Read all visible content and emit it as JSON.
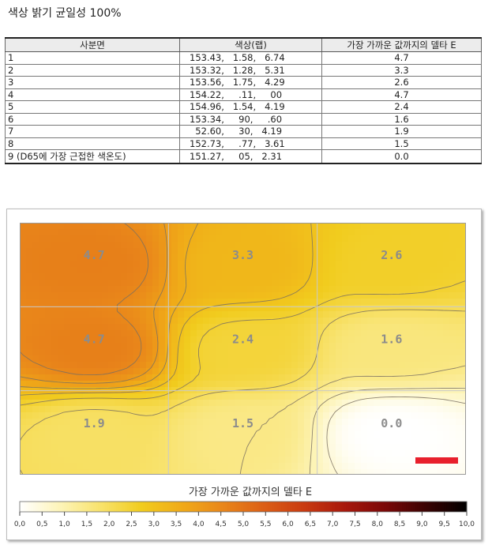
{
  "title": "색상 밝기 균일성 100%",
  "table": {
    "headers": [
      "사분면",
      "색상(랩)",
      "가장 가까운 값까지의 델타 E"
    ],
    "rows": [
      {
        "quadrant": "1",
        "lab": "153.43,   1.58,   6.74",
        "delta_e": "4.7"
      },
      {
        "quadrant": "2",
        "lab": "153.32,   1.28,   5.31",
        "delta_e": "3.3"
      },
      {
        "quadrant": "3",
        "lab": "153.56,   1.75,   4.29",
        "delta_e": "2.6"
      },
      {
        "quadrant": "4",
        "lab": "154.22,     .11,     00",
        "delta_e": "4.7"
      },
      {
        "quadrant": "5",
        "lab": "154.96,   1.54,   4.19",
        "delta_e": "2.4"
      },
      {
        "quadrant": "6",
        "lab": "153.34,     90,     .60",
        "delta_e": "1.6"
      },
      {
        "quadrant": "7",
        "lab": "  52.60,     30,   4.19",
        "delta_e": "1.9"
      },
      {
        "quadrant": "8",
        "lab": "152.73,     .77,   3.61",
        "delta_e": "1.5"
      },
      {
        "quadrant": "9 (D65에 가장 근접한 색온도)",
        "lab": "151.27,     05,   2.31",
        "delta_e": "0.0"
      }
    ]
  },
  "chart_data": {
    "type": "heatmap",
    "grid": {
      "rows": 3,
      "cols": 3
    },
    "values": [
      [
        4.7,
        3.3,
        2.6
      ],
      [
        4.7,
        2.4,
        1.6
      ],
      [
        1.9,
        1.5,
        0.0
      ]
    ],
    "cell_labels": [
      [
        "4.7",
        "3.3",
        "2.6"
      ],
      [
        "4.7",
        "2.4",
        "1.6"
      ],
      [
        "1.9",
        "1.5",
        "0.0"
      ]
    ],
    "reference_cell": {
      "row": 3,
      "col": 3
    },
    "reference_marker_color": "#e8202c",
    "legend": {
      "title": "가장 가까운 값까지의 델타 E",
      "ticks": [
        "0,0",
        "0,5",
        "1,0",
        "1,5",
        "2,0",
        "2,5",
        "3,0",
        "3,5",
        "4,0",
        "4,5",
        "5,0",
        "5,5",
        "6,0",
        "6,5",
        "7,0",
        "7,5",
        "8,0",
        "8,5",
        "9,0",
        "9,5",
        "10,0"
      ],
      "range": [
        0,
        10
      ],
      "colors": [
        "#ffffff",
        "#fdf4b8",
        "#f8e26b",
        "#f1cc1e",
        "#f0aa18",
        "#e9861a",
        "#dc5f16",
        "#c93a10",
        "#a8180c",
        "#7a0808",
        "#3a0202",
        "#000000"
      ]
    }
  }
}
